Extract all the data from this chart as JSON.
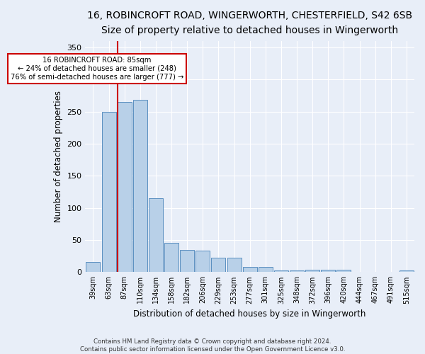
{
  "title1": "16, ROBINCROFT ROAD, WINGERWORTH, CHESTERFIELD, S42 6SB",
  "title2": "Size of property relative to detached houses in Wingerworth",
  "xlabel": "Distribution of detached houses by size in Wingerworth",
  "ylabel": "Number of detached properties",
  "categories": [
    "39sqm",
    "63sqm",
    "87sqm",
    "110sqm",
    "134sqm",
    "158sqm",
    "182sqm",
    "206sqm",
    "229sqm",
    "253sqm",
    "277sqm",
    "301sqm",
    "325sqm",
    "348sqm",
    "372sqm",
    "396sqm",
    "420sqm",
    "444sqm",
    "467sqm",
    "491sqm",
    "515sqm"
  ],
  "values": [
    16,
    250,
    265,
    268,
    115,
    45,
    34,
    33,
    22,
    22,
    8,
    8,
    3,
    3,
    4,
    4,
    4,
    0,
    0,
    0,
    3
  ],
  "bar_color": "#b8d0e8",
  "bar_edge_color": "#5a8fc0",
  "red_line_x": 1.575,
  "annotation_line1": "16 ROBINCROFT ROAD: 85sqm",
  "annotation_line2": "← 24% of detached houses are smaller (248)",
  "annotation_line3": "76% of semi-detached houses are larger (777) →",
  "annotation_box_color": "#ffffff",
  "annotation_box_edge": "#cc0000",
  "red_line_color": "#cc0000",
  "ylim": [
    0,
    360
  ],
  "yticks": [
    0,
    50,
    100,
    150,
    200,
    250,
    300,
    350
  ],
  "footer": "Contains HM Land Registry data © Crown copyright and database right 2024.\nContains public sector information licensed under the Open Government Licence v3.0.",
  "background_color": "#e8eef8",
  "grid_color": "#ffffff",
  "title1_fontsize": 10,
  "title2_fontsize": 9,
  "xlabel_fontsize": 8.5,
  "ylabel_fontsize": 8.5
}
